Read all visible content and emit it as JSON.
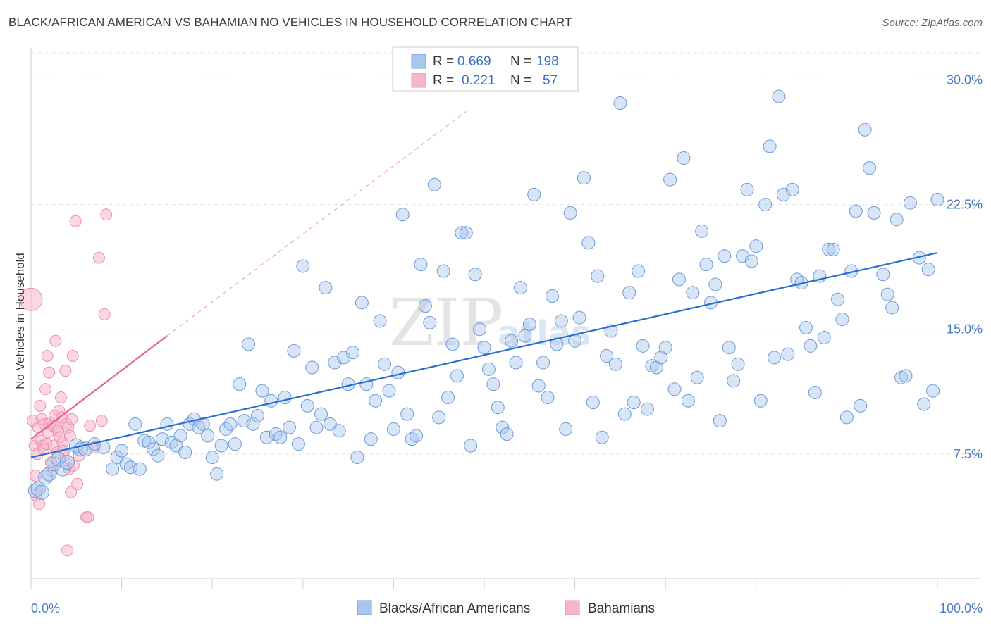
{
  "title": "BLACK/AFRICAN AMERICAN VS BAHAMIAN NO VEHICLES IN HOUSEHOLD CORRELATION CHART",
  "source": "Source: ZipAtlas.com",
  "watermark": {
    "zip": "ZIP",
    "atlas": "atlas"
  },
  "legend": {
    "row1": {
      "r_label": "R =",
      "r_value": "0.669",
      "n_label": "N =",
      "n_value": "198"
    },
    "row2": {
      "r_label": "R =",
      "r_value": "0.221",
      "n_label": "N =",
      "n_value": "57"
    }
  },
  "bottom_legend": {
    "series1": "Blacks/African Americans",
    "series2": "Bahamians"
  },
  "colors": {
    "blue_fill": "#a9c6ee",
    "blue_stroke": "#6b9bd8",
    "blue_line": "#2a6fd0",
    "pink_fill": "#f6b6ca",
    "pink_stroke": "#ec8fad",
    "pink_line": "#e8608c"
  },
  "chart_data": {
    "type": "scatter",
    "title": "BLACK/AFRICAN AMERICAN VS BAHAMIAN NO VEHICLES IN HOUSEHOLD CORRELATION CHART",
    "xlabel": "",
    "ylabel": "No Vehicles in Household",
    "xlim": [
      0,
      100
    ],
    "ylim": [
      0,
      31.5
    ],
    "x_tick_labels": [
      "0.0%",
      "100.0%"
    ],
    "y_ticks": [
      7.5,
      15.0,
      22.5,
      30.0
    ],
    "y_tick_labels": [
      "7.5%",
      "15.0%",
      "22.5%",
      "30.0%"
    ],
    "grid": "horizontal dashed",
    "series": [
      {
        "name": "Blacks/African Americans",
        "r": 0.669,
        "n": 198,
        "trend": {
          "x": [
            0,
            100
          ],
          "y": [
            7.3,
            19.6
          ]
        },
        "points": [
          [
            0.5,
            5.3
          ],
          [
            0.8,
            5.4
          ],
          [
            1.2,
            5.2
          ],
          [
            1.6,
            6.1
          ],
          [
            2.0,
            6.3
          ],
          [
            2.5,
            6.9
          ],
          [
            3.0,
            7.2
          ],
          [
            3.5,
            6.6
          ],
          [
            4.0,
            7.0
          ],
          [
            5.0,
            8.0
          ],
          [
            5.5,
            7.8
          ],
          [
            6.0,
            7.8
          ],
          [
            7.0,
            8.1
          ],
          [
            8.0,
            7.9
          ],
          [
            9.0,
            6.6
          ],
          [
            9.5,
            7.3
          ],
          [
            10.0,
            7.7
          ],
          [
            10.5,
            6.9
          ],
          [
            11.0,
            6.7
          ],
          [
            11.5,
            9.3
          ],
          [
            12.0,
            6.6
          ],
          [
            12.5,
            8.3
          ],
          [
            13.0,
            8.2
          ],
          [
            13.5,
            7.8
          ],
          [
            14.0,
            7.4
          ],
          [
            14.5,
            8.4
          ],
          [
            15.0,
            9.3
          ],
          [
            15.5,
            8.2
          ],
          [
            16.0,
            8.0
          ],
          [
            16.5,
            8.6
          ],
          [
            17.0,
            7.6
          ],
          [
            17.5,
            9.3
          ],
          [
            18.0,
            9.6
          ],
          [
            18.5,
            9.1
          ],
          [
            19.0,
            9.3
          ],
          [
            19.5,
            8.6
          ],
          [
            20.0,
            7.3
          ],
          [
            20.5,
            6.3
          ],
          [
            21.0,
            8.0
          ],
          [
            21.5,
            9.0
          ],
          [
            22.0,
            9.3
          ],
          [
            22.5,
            8.1
          ],
          [
            23.0,
            11.7
          ],
          [
            23.5,
            9.5
          ],
          [
            24.0,
            14.1
          ],
          [
            24.5,
            9.3
          ],
          [
            25.0,
            9.8
          ],
          [
            25.5,
            11.3
          ],
          [
            26.0,
            8.5
          ],
          [
            26.5,
            10.7
          ],
          [
            27.0,
            8.7
          ],
          [
            27.5,
            8.5
          ],
          [
            28.0,
            10.9
          ],
          [
            28.5,
            9.1
          ],
          [
            29.0,
            13.7
          ],
          [
            29.5,
            8.1
          ],
          [
            30.0,
            18.8
          ],
          [
            30.5,
            10.4
          ],
          [
            31.0,
            12.7
          ],
          [
            31.5,
            9.1
          ],
          [
            32.0,
            9.9
          ],
          [
            32.5,
            17.5
          ],
          [
            33.0,
            9.3
          ],
          [
            33.5,
            13.0
          ],
          [
            34.0,
            8.9
          ],
          [
            34.5,
            13.3
          ],
          [
            35.0,
            11.7
          ],
          [
            35.5,
            13.6
          ],
          [
            36.0,
            7.3
          ],
          [
            36.5,
            16.6
          ],
          [
            37.0,
            11.7
          ],
          [
            37.5,
            8.4
          ],
          [
            38.0,
            10.7
          ],
          [
            38.5,
            15.5
          ],
          [
            39.0,
            12.9
          ],
          [
            39.5,
            11.3
          ],
          [
            40.0,
            9.0
          ],
          [
            40.5,
            12.4
          ],
          [
            41.0,
            21.9
          ],
          [
            41.5,
            9.9
          ],
          [
            42.0,
            8.4
          ],
          [
            42.5,
            8.6
          ],
          [
            43.0,
            18.9
          ],
          [
            43.5,
            16.4
          ],
          [
            44.0,
            15.4
          ],
          [
            44.5,
            23.7
          ],
          [
            45.0,
            9.7
          ],
          [
            45.5,
            18.5
          ],
          [
            46.0,
            10.9
          ],
          [
            46.5,
            14.1
          ],
          [
            47.0,
            12.2
          ],
          [
            47.5,
            20.8
          ],
          [
            48.0,
            20.8
          ],
          [
            48.5,
            8.0
          ],
          [
            49.0,
            18.3
          ],
          [
            49.5,
            15.0
          ],
          [
            50.0,
            13.9
          ],
          [
            50.5,
            12.6
          ],
          [
            51.0,
            11.7
          ],
          [
            51.5,
            10.3
          ],
          [
            52.0,
            9.1
          ],
          [
            52.5,
            8.7
          ],
          [
            53.0,
            14.3
          ],
          [
            53.5,
            13.0
          ],
          [
            54.0,
            17.5
          ],
          [
            54.5,
            14.6
          ],
          [
            55.0,
            15.3
          ],
          [
            55.5,
            23.1
          ],
          [
            56.0,
            11.6
          ],
          [
            56.5,
            13.0
          ],
          [
            57.0,
            10.9
          ],
          [
            57.5,
            17.0
          ],
          [
            58.0,
            14.1
          ],
          [
            58.5,
            15.5
          ],
          [
            59.0,
            9.0
          ],
          [
            59.5,
            22.0
          ],
          [
            60.0,
            14.3
          ],
          [
            60.5,
            15.7
          ],
          [
            61.0,
            24.1
          ],
          [
            61.5,
            20.2
          ],
          [
            62.0,
            10.6
          ],
          [
            62.5,
            18.2
          ],
          [
            63.0,
            8.5
          ],
          [
            63.5,
            13.4
          ],
          [
            64.0,
            14.9
          ],
          [
            64.5,
            12.9
          ],
          [
            65.0,
            28.6
          ],
          [
            65.5,
            9.9
          ],
          [
            66.0,
            17.2
          ],
          [
            66.5,
            10.6
          ],
          [
            67.0,
            18.5
          ],
          [
            67.5,
            14.0
          ],
          [
            68.0,
            10.2
          ],
          [
            68.5,
            12.8
          ],
          [
            69.0,
            12.7
          ],
          [
            69.5,
            13.3
          ],
          [
            70.0,
            13.9
          ],
          [
            70.5,
            24.0
          ],
          [
            71.0,
            11.4
          ],
          [
            71.5,
            18.0
          ],
          [
            72.0,
            25.3
          ],
          [
            72.5,
            10.7
          ],
          [
            73.0,
            17.2
          ],
          [
            73.5,
            12.1
          ],
          [
            74.0,
            20.9
          ],
          [
            74.5,
            18.9
          ],
          [
            75.0,
            16.6
          ],
          [
            75.5,
            17.7
          ],
          [
            76.0,
            9.5
          ],
          [
            76.5,
            19.4
          ],
          [
            77.0,
            13.9
          ],
          [
            77.5,
            11.9
          ],
          [
            78.0,
            12.9
          ],
          [
            78.5,
            19.4
          ],
          [
            79.0,
            23.4
          ],
          [
            79.5,
            19.1
          ],
          [
            80.0,
            20.0
          ],
          [
            80.5,
            10.7
          ],
          [
            81.0,
            22.5
          ],
          [
            81.5,
            26.0
          ],
          [
            82.0,
            13.3
          ],
          [
            82.5,
            29.0
          ],
          [
            83.0,
            23.1
          ],
          [
            83.5,
            13.5
          ],
          [
            84.0,
            23.4
          ],
          [
            84.5,
            18.0
          ],
          [
            85.0,
            17.8
          ],
          [
            85.5,
            15.1
          ],
          [
            86.0,
            14.0
          ],
          [
            86.5,
            11.2
          ],
          [
            87.0,
            18.2
          ],
          [
            87.5,
            14.5
          ],
          [
            88.0,
            19.8
          ],
          [
            88.5,
            19.8
          ],
          [
            89.0,
            16.8
          ],
          [
            89.5,
            15.6
          ],
          [
            90.0,
            9.7
          ],
          [
            90.5,
            18.5
          ],
          [
            91.0,
            22.1
          ],
          [
            91.5,
            10.4
          ],
          [
            92.0,
            27.0
          ],
          [
            92.5,
            24.7
          ],
          [
            93.0,
            22.0
          ],
          [
            94.0,
            18.3
          ],
          [
            94.5,
            17.1
          ],
          [
            95.0,
            16.3
          ],
          [
            95.5,
            21.6
          ],
          [
            96.0,
            12.1
          ],
          [
            96.5,
            12.2
          ],
          [
            97.0,
            22.6
          ],
          [
            98.0,
            19.3
          ],
          [
            98.5,
            10.5
          ],
          [
            99.0,
            18.6
          ],
          [
            99.5,
            11.3
          ],
          [
            100.0,
            22.8
          ]
        ]
      },
      {
        "name": "Bahamians",
        "r": 0.221,
        "n": 57,
        "trend": {
          "x": [
            0,
            15
          ],
          "y": [
            8.4,
            14.6
          ]
        },
        "trend_extension": {
          "x": [
            15,
            48
          ],
          "y": [
            14.6,
            28.1
          ]
        },
        "points": [
          [
            0.0,
            16.8
          ],
          [
            0.2,
            9.5
          ],
          [
            0.4,
            8.0
          ],
          [
            0.5,
            6.2
          ],
          [
            0.6,
            5.0
          ],
          [
            0.7,
            7.5
          ],
          [
            0.8,
            9.1
          ],
          [
            0.9,
            4.5
          ],
          [
            1.0,
            10.4
          ],
          [
            1.1,
            8.3
          ],
          [
            1.2,
            9.6
          ],
          [
            1.3,
            8.0
          ],
          [
            1.4,
            7.8
          ],
          [
            1.5,
            9.3
          ],
          [
            1.6,
            11.4
          ],
          [
            1.7,
            8.1
          ],
          [
            1.8,
            13.4
          ],
          [
            1.9,
            8.8
          ],
          [
            2.0,
            12.4
          ],
          [
            2.1,
            9.4
          ],
          [
            2.2,
            7.0
          ],
          [
            2.3,
            6.5
          ],
          [
            2.4,
            9.2
          ],
          [
            2.5,
            8.0
          ],
          [
            2.6,
            9.8
          ],
          [
            2.7,
            14.3
          ],
          [
            2.8,
            9.1
          ],
          [
            2.9,
            7.6
          ],
          [
            3.0,
            8.9
          ],
          [
            3.1,
            10.1
          ],
          [
            3.2,
            8.5
          ],
          [
            3.3,
            10.9
          ],
          [
            3.4,
            9.7
          ],
          [
            3.5,
            8.2
          ],
          [
            3.6,
            7.7
          ],
          [
            3.7,
            7.4
          ],
          [
            3.8,
            12.5
          ],
          [
            3.9,
            9.3
          ],
          [
            4.0,
            1.7
          ],
          [
            4.1,
            9.1
          ],
          [
            4.2,
            6.6
          ],
          [
            4.3,
            8.6
          ],
          [
            4.4,
            5.2
          ],
          [
            4.5,
            9.6
          ],
          [
            4.6,
            13.4
          ],
          [
            4.7,
            6.8
          ],
          [
            4.9,
            21.5
          ],
          [
            5.1,
            5.7
          ],
          [
            5.3,
            7.4
          ],
          [
            6.1,
            3.7
          ],
          [
            6.3,
            3.7
          ],
          [
            6.5,
            9.2
          ],
          [
            7.0,
            7.9
          ],
          [
            7.5,
            19.3
          ],
          [
            7.8,
            9.5
          ],
          [
            8.1,
            15.9
          ],
          [
            8.3,
            21.9
          ]
        ]
      }
    ]
  }
}
